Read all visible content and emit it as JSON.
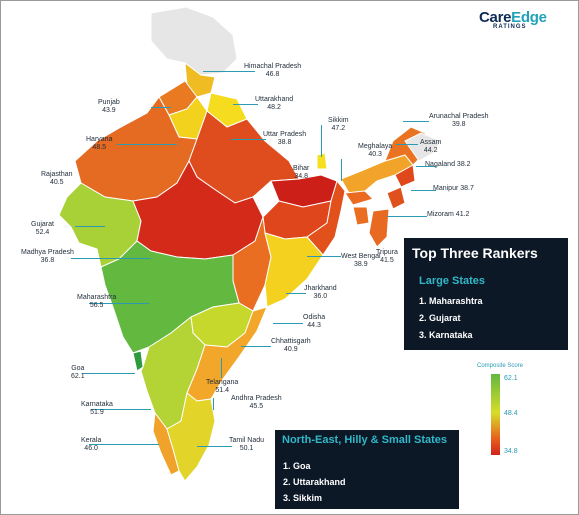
{
  "brand": {
    "name_part1": "Care",
    "name_part2": "Edge",
    "tagline": "RATINGS"
  },
  "colors": {
    "green": "#5fb442",
    "light_green": "#9ecf3d",
    "yellow_green": "#c7d62c",
    "yellow": "#f1d11c",
    "orange": "#f0a12a",
    "dark_orange": "#ea6f21",
    "red_orange": "#e0461c",
    "red": "#cf2019",
    "no_data": "#e6e6e6",
    "panel_bg": "#0c1826",
    "accent_teal": "#31b7c9"
  },
  "states": [
    {
      "name": "Himachal Pradesh",
      "score": "46.8"
    },
    {
      "name": "Punjab",
      "score": "43.9"
    },
    {
      "name": "Uttarakhand",
      "score": "48.2"
    },
    {
      "name": "Haryana",
      "score": "48.5"
    },
    {
      "name": "Uttar Pradesh",
      "score": "38.8"
    },
    {
      "name": "Sikkim",
      "score": "47.2"
    },
    {
      "name": "Arunachal Pradesh",
      "score": "39.8"
    },
    {
      "name": "Assam",
      "score": "44.2"
    },
    {
      "name": "Meghalaya",
      "score": "40.3"
    },
    {
      "name": "Nagaland",
      "score": "38.2"
    },
    {
      "name": "Rajasthan",
      "score": "40.5"
    },
    {
      "name": "Bihar",
      "score": "34.8"
    },
    {
      "name": "Manipur",
      "score": "38.7"
    },
    {
      "name": "Mizoram",
      "score": "41.2"
    },
    {
      "name": "Gujarat",
      "score": "52.4"
    },
    {
      "name": "Tripura",
      "score": "41.5"
    },
    {
      "name": "Madhya Pradesh",
      "score": "36.8"
    },
    {
      "name": "West Bengal",
      "score": "38.9"
    },
    {
      "name": "Jharkhand",
      "score": "36.0"
    },
    {
      "name": "Maharashtra",
      "score": "56.5"
    },
    {
      "name": "Odisha",
      "score": "44.3"
    },
    {
      "name": "Chhattisgarh",
      "score": "40.9"
    },
    {
      "name": "Goa",
      "score": "62.1"
    },
    {
      "name": "Telangana",
      "score": "51.4"
    },
    {
      "name": "Karnataka",
      "score": "51.9"
    },
    {
      "name": "Andhra Pradesh",
      "score": "45.5"
    },
    {
      "name": "Kerala",
      "score": "46.0"
    },
    {
      "name": "Tamil Nadu",
      "score": "50.1"
    }
  ],
  "top_rankers": {
    "title": "Top Three Rankers",
    "large_states": {
      "heading": "Large States",
      "items": [
        "1.  Maharashtra",
        "2.  Gujarat",
        "3.  Karnataka"
      ]
    },
    "small_states": {
      "heading": "North-East, Hilly & Small States",
      "items": [
        "1.  Goa",
        "2.  Uttarakhand",
        "3.  Sikkim"
      ]
    }
  },
  "legend": {
    "title": "Composite Score",
    "max": "62.1",
    "mid": "48.4",
    "min": "34.8"
  }
}
